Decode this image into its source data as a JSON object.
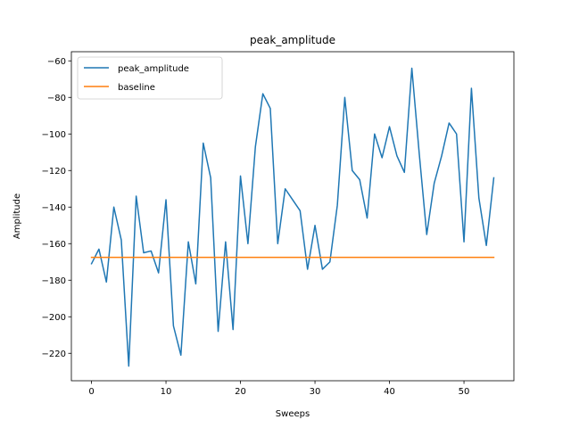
{
  "chart_data": {
    "type": "line",
    "title": "peak_amplitude",
    "xlabel": "Sweeps",
    "ylabel": "Amplitude",
    "xlim": [
      -2.7,
      56.7
    ],
    "ylim": [
      -235,
      -55
    ],
    "xticks": [
      0,
      10,
      20,
      30,
      40,
      50
    ],
    "yticks": [
      -220,
      -200,
      -180,
      -160,
      -140,
      -120,
      -100,
      -80,
      -60
    ],
    "grid": false,
    "legend_position": "upper-left",
    "series": [
      {
        "name": "peak_amplitude",
        "color": "#1f77b4",
        "x": [
          0,
          1,
          2,
          3,
          4,
          5,
          6,
          7,
          8,
          9,
          10,
          11,
          12,
          13,
          14,
          15,
          16,
          17,
          18,
          19,
          20,
          21,
          22,
          23,
          24,
          25,
          26,
          27,
          28,
          29,
          30,
          31,
          32,
          33,
          34,
          35,
          36,
          37,
          38,
          39,
          40,
          41,
          42,
          43,
          44,
          45,
          46,
          47,
          48,
          49,
          50,
          51,
          52,
          53,
          54
        ],
        "values": [
          -171,
          -163,
          -181,
          -140,
          -158,
          -227,
          -134,
          -165,
          -164,
          -176,
          -136,
          -205,
          -221,
          -159,
          -182,
          -105,
          -124,
          -208,
          -159,
          -207,
          -123,
          -160,
          -107,
          -78,
          -86,
          -160,
          -130,
          -136,
          -142,
          -174,
          -150,
          -174,
          -170,
          -139,
          -80,
          -120,
          -125,
          -146,
          -100,
          -113,
          -96,
          -112,
          -121,
          -64,
          -111,
          -155,
          -127,
          -112,
          -94,
          -100,
          -159,
          -75,
          -135,
          -161,
          -124
        ]
      },
      {
        "name": "baseline",
        "color": "#ff7f0e",
        "x": [
          0,
          54
        ],
        "values": [
          -167.5,
          -167.5
        ]
      }
    ]
  }
}
